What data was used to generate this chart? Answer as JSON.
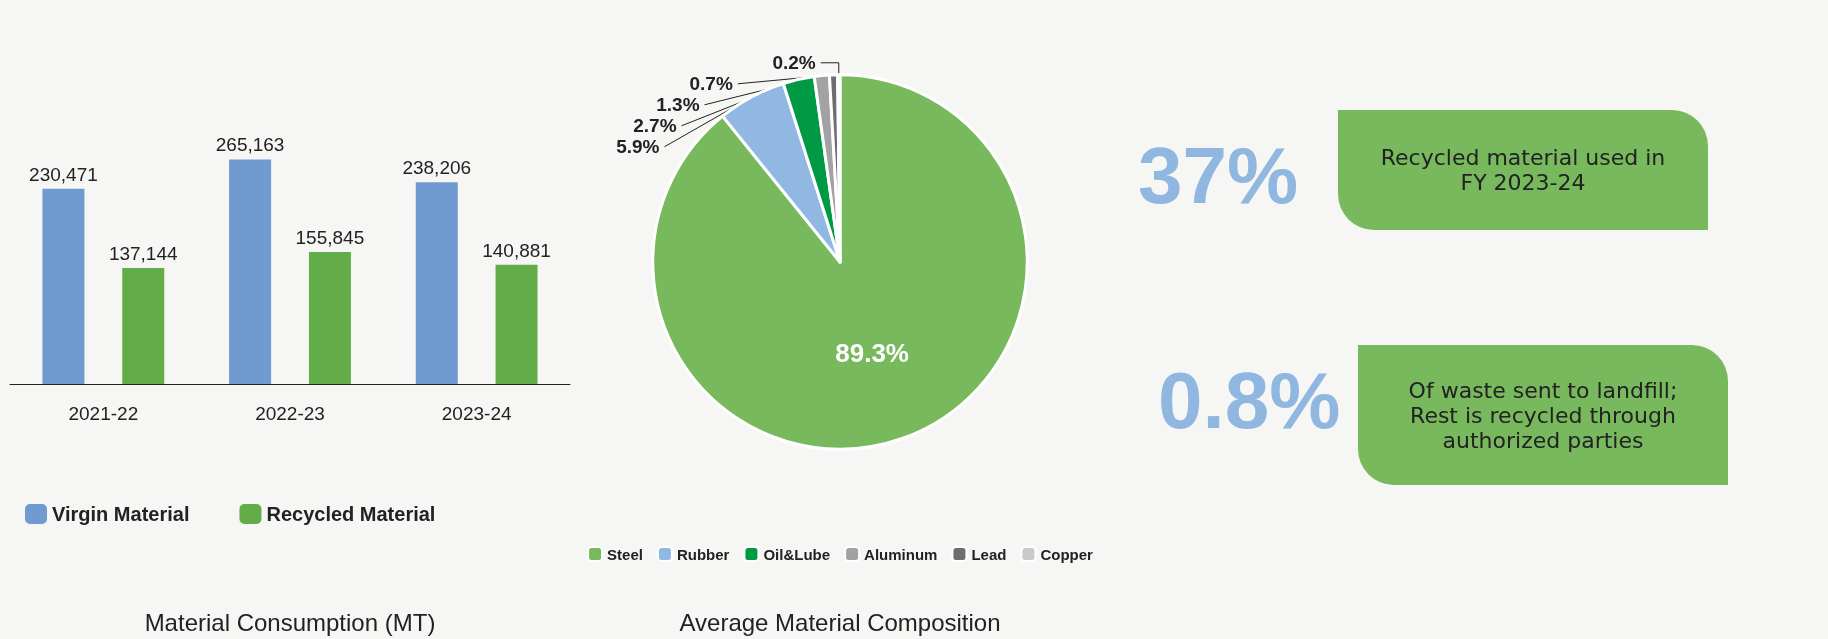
{
  "chart_data": [
    {
      "type": "bar",
      "title": "Material Consumption (MT)",
      "categories": [
        "2021-22",
        "2022-23",
        "2023-24"
      ],
      "series": [
        {
          "name": "Virgin Material",
          "color": "#6f9bd0",
          "values": [
            230471,
            265163,
            238206
          ],
          "value_labels": [
            "230,471",
            "265,163",
            "238,206"
          ]
        },
        {
          "name": "Recycled Material",
          "color": "#62ad47",
          "values": [
            137144,
            155845,
            140881
          ],
          "value_labels": [
            "137,144",
            "155,845",
            "140,881"
          ]
        }
      ],
      "tick_labels": "x",
      "legend": "bottom",
      "grid": false
    },
    {
      "type": "pie",
      "title": "Average Material Composition",
      "categories": [
        "Steel",
        "Rubber",
        "Oil&Lube",
        "Aluminum",
        "Lead",
        "Copper"
      ],
      "values": [
        89.3,
        5.9,
        2.7,
        1.3,
        0.7,
        0.2
      ],
      "colors": [
        "#78b95e",
        "#90b8e2",
        "#009944",
        "#a0a2a3",
        "#6d6e70",
        "#c8c9ca"
      ],
      "value_labels": [
        "89.3%",
        "5.9%",
        "2.7%",
        "1.3%",
        "0.7%",
        "0.2%"
      ],
      "legend": "bottom"
    },
    {
      "type": "other",
      "annotations": [
        "37%",
        "Recycled material used in FY 2023-24",
        "0.8%",
        "Of waste sent to landfill; Rest is recycled through authorized parties"
      ]
    }
  ]
}
